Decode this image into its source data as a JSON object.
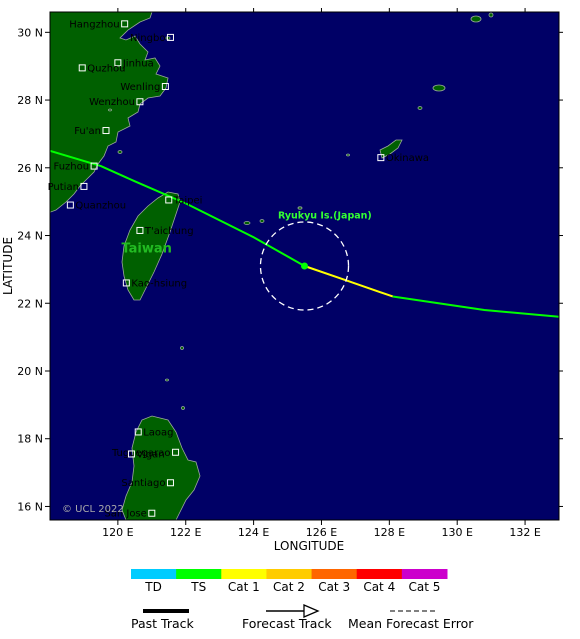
{
  "map": {
    "bounds": {
      "lon_min": 118.0,
      "lon_max": 133.0,
      "lat_min": 15.6,
      "lat_max": 30.6
    },
    "colors": {
      "ocean": "#000066",
      "land": "#006000",
      "coast": "#9aa99a"
    },
    "x_ticks": [
      {
        "lon": 120,
        "label": "120 E"
      },
      {
        "lon": 122,
        "label": "122 E"
      },
      {
        "lon": 124,
        "label": "124 E"
      },
      {
        "lon": 126,
        "label": "126 E"
      },
      {
        "lon": 128,
        "label": "128 E"
      },
      {
        "lon": 130,
        "label": "130 E"
      },
      {
        "lon": 132,
        "label": "132 E"
      }
    ],
    "y_ticks": [
      {
        "lat": 16,
        "label": "16 N"
      },
      {
        "lat": 18,
        "label": "18 N"
      },
      {
        "lat": 20,
        "label": "20 N"
      },
      {
        "lat": 22,
        "label": "22 N"
      },
      {
        "lat": 24,
        "label": "24 N"
      },
      {
        "lat": 26,
        "label": "26 N"
      },
      {
        "lat": 28,
        "label": "28 N"
      },
      {
        "lat": 30,
        "label": "30 N"
      }
    ],
    "xlabel": "LONGITUDE",
    "ylabel": "LATITUDE",
    "cities": [
      {
        "name": "Hangzhou",
        "lon": 120.2,
        "lat": 30.25,
        "side": "left"
      },
      {
        "name": "Ningbo",
        "lon": 121.55,
        "lat": 29.85,
        "side": "left"
      },
      {
        "name": "Jinhua",
        "lon": 120.0,
        "lat": 29.1,
        "side": "right"
      },
      {
        "name": "Quzhou",
        "lon": 118.95,
        "lat": 28.95,
        "side": "right"
      },
      {
        "name": "Wenling",
        "lon": 121.4,
        "lat": 28.4,
        "side": "left"
      },
      {
        "name": "Wenzhou",
        "lon": 120.65,
        "lat": 27.95,
        "side": "left"
      },
      {
        "name": "Fu'an",
        "lon": 119.65,
        "lat": 27.1,
        "side": "left"
      },
      {
        "name": "Fuzhou",
        "lon": 119.3,
        "lat": 26.05,
        "side": "left"
      },
      {
        "name": "Putian",
        "lon": 119.0,
        "lat": 25.45,
        "side": "left"
      },
      {
        "name": "Quanzhou",
        "lon": 118.6,
        "lat": 24.9,
        "side": "right"
      },
      {
        "name": "Taipei",
        "lon": 121.5,
        "lat": 25.05,
        "side": "right"
      },
      {
        "name": "T'aichung",
        "lon": 120.65,
        "lat": 24.15,
        "side": "right"
      },
      {
        "name": "Kao-hsiung",
        "lon": 120.25,
        "lat": 22.6,
        "side": "right"
      },
      {
        "name": "Okinawa",
        "lon": 127.75,
        "lat": 26.3,
        "side": "right"
      },
      {
        "name": "Laoag",
        "lon": 120.6,
        "lat": 18.2,
        "side": "right"
      },
      {
        "name": "Tuguegarao",
        "lon": 121.7,
        "lat": 17.6,
        "side": "left"
      },
      {
        "name": "Vigan",
        "lon": 120.4,
        "lat": 17.55,
        "side": "right"
      },
      {
        "name": "Santiago",
        "lon": 121.55,
        "lat": 16.7,
        "side": "left"
      },
      {
        "name": "San Jose",
        "lon": 121.0,
        "lat": 15.8,
        "side": "left"
      }
    ],
    "regions": [
      {
        "name": "Taiwan",
        "lon": 120.85,
        "lat": 23.5,
        "color": "#22bb22"
      },
      {
        "name": "Ryukyu Is.(Japan)",
        "lon": 126.1,
        "lat": 24.5,
        "color": "#33ff33"
      }
    ],
    "track": {
      "ts_before": [
        [
          118.0,
          26.5
        ],
        [
          119.5,
          26.05
        ],
        [
          120.5,
          25.6
        ],
        [
          122.0,
          24.95
        ],
        [
          124.0,
          23.95
        ],
        [
          125.5,
          23.1
        ]
      ],
      "forecast_cat1": [
        [
          125.5,
          23.1
        ],
        [
          126.8,
          22.65
        ],
        [
          128.1,
          22.2
        ]
      ],
      "forecast_ts": [
        [
          128.1,
          22.2
        ],
        [
          130.8,
          21.8
        ],
        [
          133.0,
          21.6
        ]
      ],
      "center": {
        "lon": 125.5,
        "lat": 23.1
      },
      "error_circle_radius_deg": 1.3
    },
    "watermark": "© UCL 2022"
  },
  "legend": {
    "categories": [
      {
        "label": "TD",
        "color": "#00ccff"
      },
      {
        "label": "TS",
        "color": "#00ff00"
      },
      {
        "label": "Cat 1",
        "color": "#ffff00"
      },
      {
        "label": "Cat 2",
        "color": "#ffcc00"
      },
      {
        "label": "Cat 3",
        "color": "#ff6600"
      },
      {
        "label": "Cat 4",
        "color": "#ff0000"
      },
      {
        "label": "Cat 5",
        "color": "#cc00cc"
      }
    ],
    "past_track": "Past Track",
    "forecast_track": "Forecast Track",
    "mean_error": "Mean Forecast Error"
  }
}
